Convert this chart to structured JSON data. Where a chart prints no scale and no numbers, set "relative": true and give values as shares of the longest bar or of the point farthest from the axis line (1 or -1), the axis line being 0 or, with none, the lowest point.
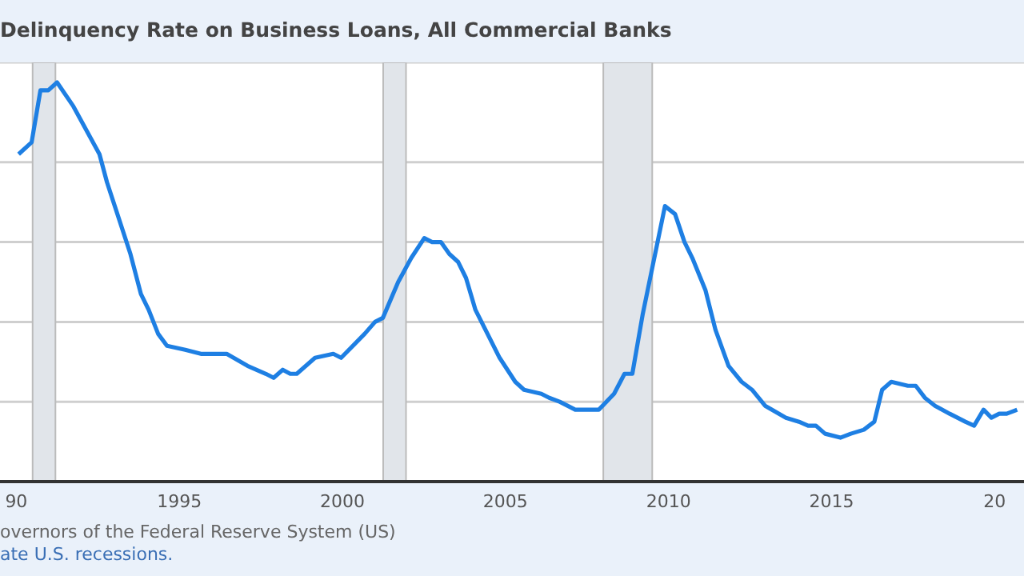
{
  "chart_data": {
    "type": "line",
    "title": "Delinquency Rate on Business Loans, All Commercial Banks",
    "relative": true,
    "x": [
      1990.07,
      1990.47,
      1990.74,
      1990.98,
      1991.25,
      1991.75,
      1992.55,
      1992.78,
      1993.5,
      1993.82,
      1994.06,
      1994.35,
      1994.62,
      1995.18,
      1995.66,
      1996.45,
      1997.09,
      1997.65,
      1997.89,
      1998.17,
      1998.4,
      1998.6,
      1999.16,
      1999.72,
      1999.96,
      2000.68,
      2001.0,
      2001.24,
      2001.71,
      2002.11,
      2002.51,
      2002.75,
      2003.02,
      2003.28,
      2003.55,
      2003.79,
      2004.08,
      2004.82,
      2005.3,
      2005.57,
      2006.1,
      2006.34,
      2006.66,
      2006.9,
      2007.14,
      2007.46,
      2007.86,
      2008.33,
      2008.65,
      2008.89,
      2009.21,
      2009.89,
      2010.2,
      2010.49,
      2010.73,
      2011.13,
      2011.44,
      2011.84,
      2012.24,
      2012.56,
      2012.96,
      2013.6,
      2014.0,
      2014.28,
      2014.52,
      2014.8,
      2015.27,
      2015.59,
      2015.99,
      2016.31,
      2016.55,
      2016.83,
      2017.34,
      2017.58,
      2017.86,
      2018.17,
      2018.62,
      2018.86,
      2019.1,
      2019.37,
      2019.66,
      2019.9,
      2020.14,
      2020.37,
      2020.69
    ],
    "series": [
      {
        "color": "#1e7fe3",
        "values": [
          0.82,
          0.85,
          0.98,
          0.98,
          1,
          0.94,
          0.82,
          0.75,
          0.57,
          0.47,
          0.43,
          0.37,
          0.34,
          0.33,
          0.32,
          0.32,
          0.29,
          0.27,
          0.26,
          0.28,
          0.27,
          0.27,
          0.31,
          0.32,
          0.31,
          0.37,
          0.4,
          0.41,
          0.5,
          0.56,
          0.61,
          0.6,
          0.6,
          0.57,
          0.55,
          0.51,
          0.43,
          0.31,
          0.25,
          0.23,
          0.22,
          0.21,
          0.2,
          0.19,
          0.18,
          0.18,
          0.18,
          0.22,
          0.27,
          0.27,
          0.42,
          0.69,
          0.67,
          0.6,
          0.56,
          0.48,
          0.38,
          0.29,
          0.25,
          0.23,
          0.19,
          0.16,
          0.15,
          0.14,
          0.14,
          0.12,
          0.11,
          0.12,
          0.13,
          0.15,
          0.23,
          0.25,
          0.24,
          0.24,
          0.21,
          0.19,
          0.17,
          0.16,
          0.15,
          0.14,
          0.18,
          0.16,
          0.17,
          0.17,
          0.18
        ]
      }
    ],
    "xlim": [
      1989.5,
      2020.9
    ],
    "xticks": [
      {
        "value": 1990,
        "label": "90"
      },
      1995,
      2000,
      2005,
      2010,
      2015,
      {
        "value": 2020,
        "label": "20"
      }
    ],
    "bands": [
      {
        "axis": "x",
        "from": 1990.5,
        "to": 1991.2,
        "color": "#e1e5ea"
      },
      {
        "axis": "x",
        "from": 2001.25,
        "to": 2001.95,
        "color": "#e1e5ea"
      },
      {
        "axis": "x",
        "from": 2008.0,
        "to": 2009.5,
        "color": "#e1e5ea"
      }
    ],
    "grid": "y",
    "line_style": "solid",
    "marker": "none",
    "annotations": [
      "overnors of the Federal Reserve System (US)",
      "ate U.S. recessions."
    ]
  }
}
